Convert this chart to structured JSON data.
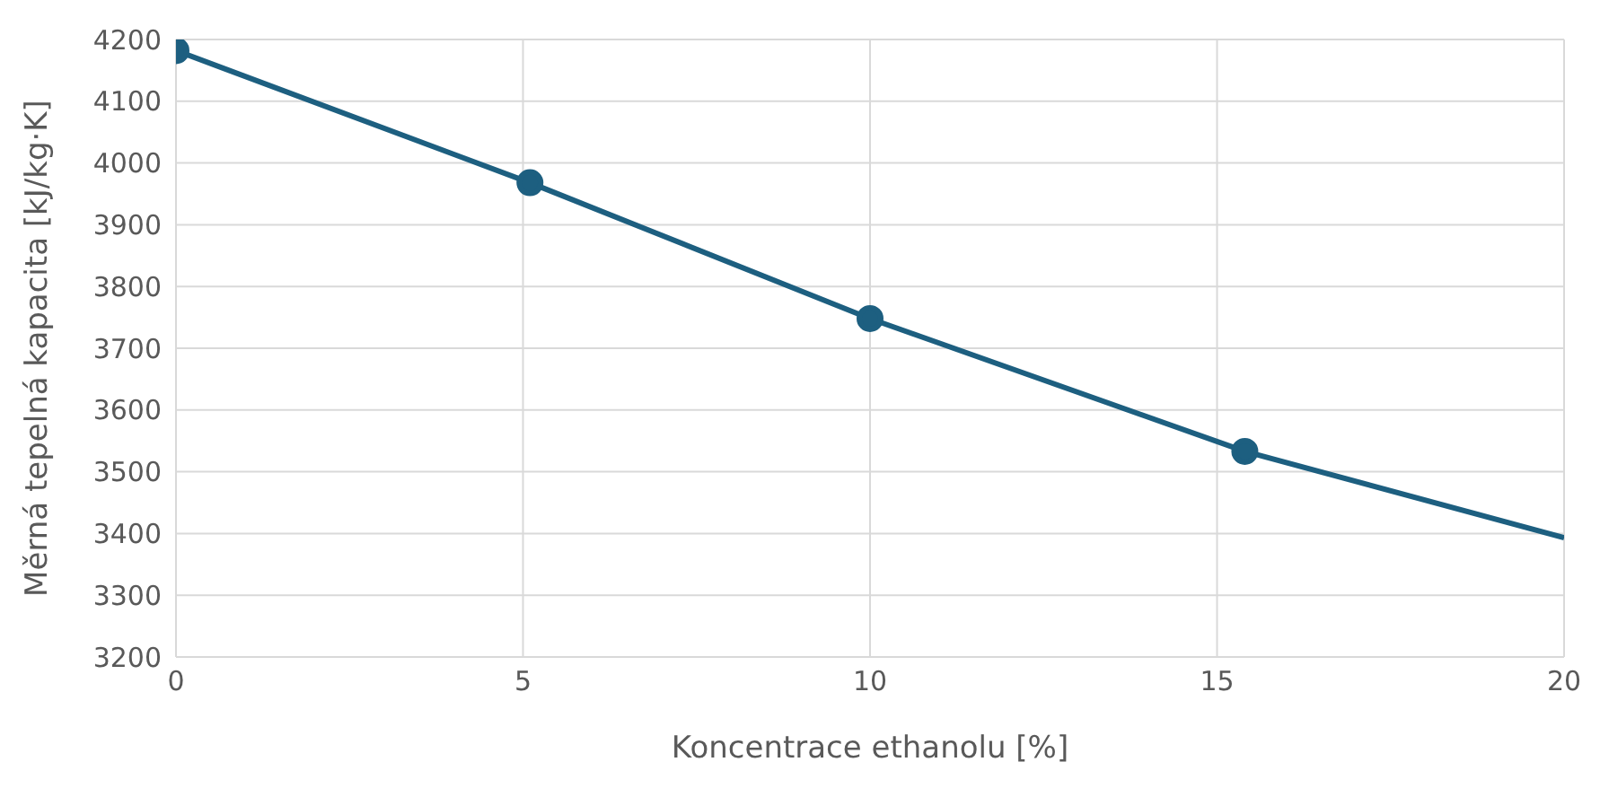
{
  "chart_data": {
    "type": "line",
    "xlabel": "Koncentrace ethanolu [%]",
    "ylabel": "Měrná tepelná kapacita  [kJ/kg·K]",
    "series": [
      {
        "color": "#1d5f80",
        "x": [
          0,
          5.1,
          10,
          15.4
        ],
        "values": [
          4182,
          3968,
          3748,
          3533
        ],
        "marker": "circle"
      },
      {
        "color": "#1d5f80",
        "x": [
          15.4,
          20
        ],
        "values": [
          3533,
          3393
        ],
        "marker": "none"
      }
    ],
    "xlim": [
      0,
      20
    ],
    "xticks": [
      0,
      5,
      10,
      15,
      20
    ],
    "ylim": [
      3200,
      4200
    ],
    "yticks": [
      3200,
      3300,
      3400,
      3500,
      3600,
      3700,
      3800,
      3900,
      4000,
      4100,
      4200
    ],
    "grid": true,
    "line_style": "solid"
  }
}
